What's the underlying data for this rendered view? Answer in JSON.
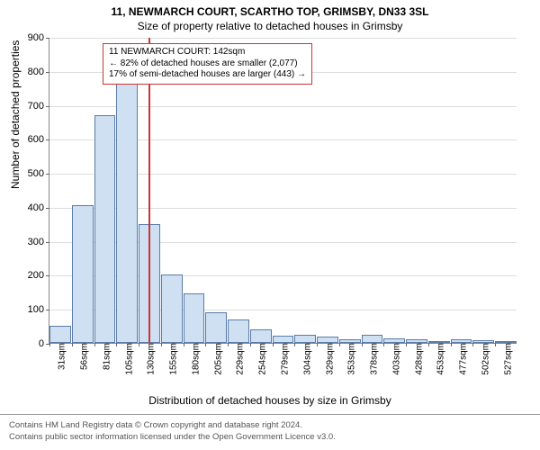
{
  "title_main": "11, NEWMARCH COURT, SCARTHO TOP, GRIMSBY, DN33 3SL",
  "title_sub": "Size of property relative to detached houses in Grimsby",
  "y_axis_label": "Number of detached properties",
  "x_axis_label": "Distribution of detached houses by size in Grimsby",
  "chart": {
    "type": "histogram",
    "background_color": "#ffffff",
    "grid_color": "#dddddd",
    "axis_color": "#888888",
    "bar_fill": "#cfe0f2",
    "bar_border": "#5a7ca8",
    "ref_line_color": "#cc3333",
    "ylim": [
      0,
      900
    ],
    "ytick_step": 100,
    "x_bin_width_sqm": 25,
    "x_start_sqm": 31,
    "x_labels": [
      "31sqm",
      "56sqm",
      "81sqm",
      "105sqm",
      "130sqm",
      "155sqm",
      "180sqm",
      "205sqm",
      "229sqm",
      "254sqm",
      "279sqm",
      "304sqm",
      "329sqm",
      "353sqm",
      "378sqm",
      "403sqm",
      "428sqm",
      "453sqm",
      "477sqm",
      "502sqm",
      "527sqm"
    ],
    "values": [
      50,
      405,
      670,
      790,
      350,
      200,
      145,
      90,
      70,
      40,
      20,
      25,
      18,
      10,
      25,
      12,
      10,
      2,
      10,
      8,
      5
    ],
    "ref_line_sqm": 142,
    "title_fontsize": 12,
    "label_fontsize": 12,
    "tick_fontsize": 11
  },
  "annotation": {
    "border_color": "#cc3333",
    "lines": [
      "11 NEWMARCH COURT: 142sqm",
      "← 82% of detached houses are smaller (2,077)",
      "17% of semi-detached houses are larger (443) →"
    ]
  },
  "footer": {
    "line1": "Contains HM Land Registry data © Crown copyright and database right 2024.",
    "line2": "Contains public sector information licensed under the Open Government Licence v3.0."
  }
}
